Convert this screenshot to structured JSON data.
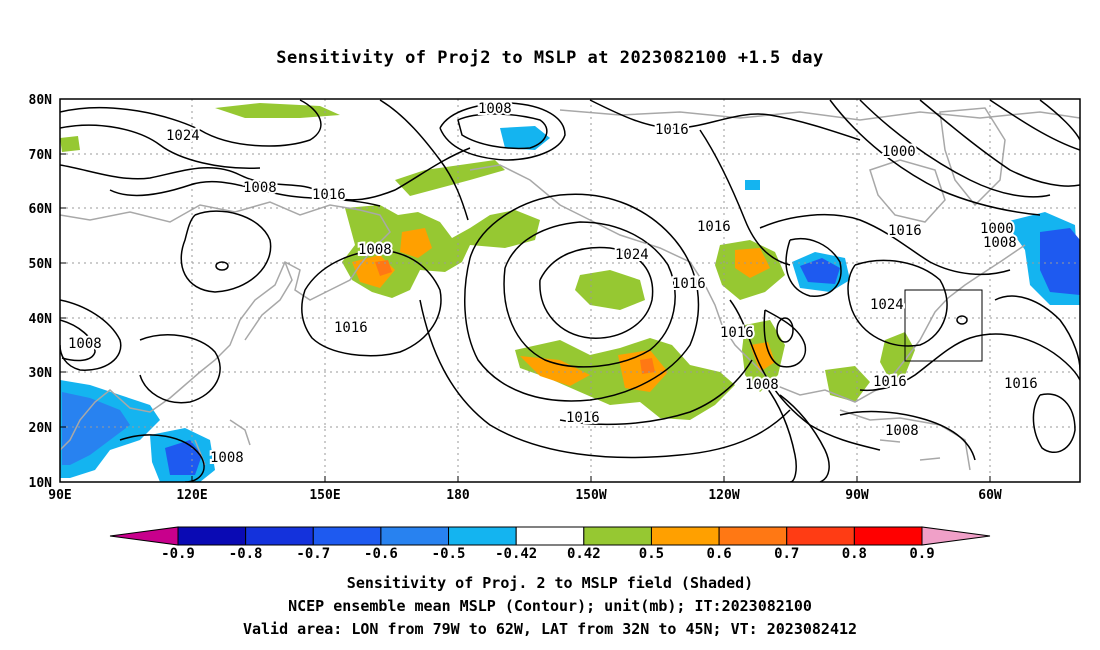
{
  "title": "Sensitivity of Proj2 to MSLP at 2023082100 +1.5 day",
  "lat_labels": [
    "80N",
    "70N",
    "60N",
    "50N",
    "40N",
    "30N",
    "20N",
    "10N"
  ],
  "lon_labels": [
    "90E",
    "120E",
    "150E",
    "180",
    "150W",
    "120W",
    "90W",
    "60W"
  ],
  "contour_labels": [
    "1008",
    "1024",
    "1016",
    "1016",
    "1000",
    "1008",
    "1016",
    "1000",
    "1008",
    "1016",
    "1008",
    "1024",
    "1016",
    "1016",
    "1024",
    "1008",
    "1016",
    "1016",
    "1008",
    "1016",
    "1016",
    "1008",
    "1008"
  ],
  "colorbar": {
    "labels": [
      "-0.9",
      "-0.8",
      "-0.7",
      "-0.6",
      "-0.5",
      "-0.42",
      "0.42",
      "0.5",
      "0.6",
      "0.7",
      "0.8",
      "0.9"
    ],
    "colors": [
      "#0a0ab4",
      "#1432dc",
      "#1e5af0",
      "#2882f0",
      "#14b4f0",
      "#ffffff",
      "#96c832",
      "#ffa000",
      "#ff7814",
      "#ff3c14",
      "#ff0000"
    ],
    "left_arrow_color": "#c8008c",
    "right_arrow_color": "#f0a0c8"
  },
  "footer": {
    "line1": "Sensitivity of Proj. 2 to MSLP field (Shaded)",
    "line2": "NCEP ensemble mean MSLP (Contour); unit(mb); IT:2023082100",
    "line3": "Valid area: LON from 79W to 62W, LAT from 32N to 45N; VT: 2023082412"
  },
  "valid_area": {
    "lon_min": -79,
    "lon_max": -62,
    "lat_min": 32,
    "lat_max": 45
  }
}
